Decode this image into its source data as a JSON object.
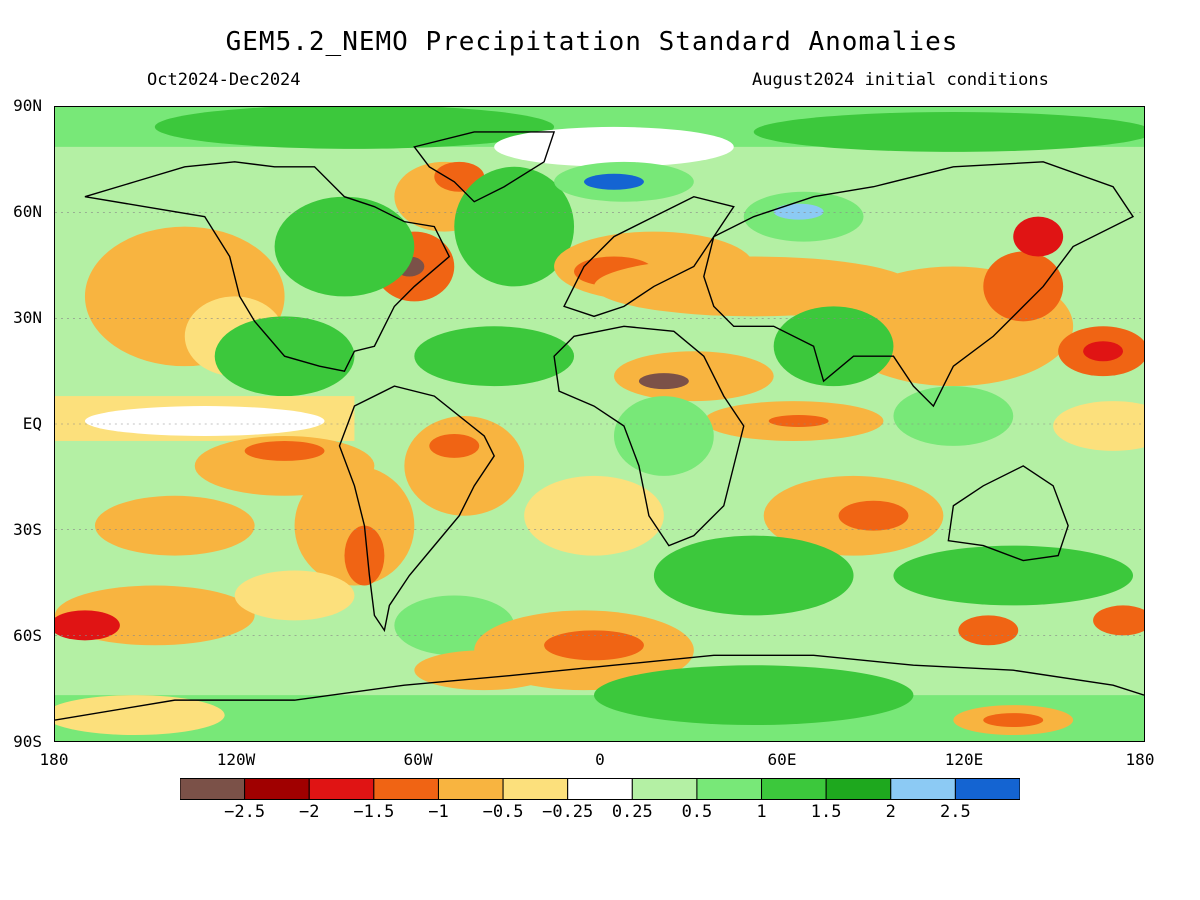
{
  "title": "GEM5.2_NEMO Precipitation Standard Anomalies",
  "period": "Oct2024-Dec2024",
  "initial_conditions": "August2024 initial conditions",
  "lat_labels": [
    "90N",
    "60N",
    "30N",
    "EQ",
    "30S",
    "60S",
    "90S"
  ],
  "lon_labels": [
    "180",
    "120W",
    "60W",
    "0",
    "60E",
    "120E",
    "180"
  ],
  "legend": {
    "colors": [
      "#7b5148",
      "#a00000",
      "#e01414",
      "#f06414",
      "#f8b440",
      "#fce07c",
      "#ffffff",
      "#b4f0a4",
      "#78e878",
      "#3cc83c",
      "#1ea81e",
      "#8ccaf4",
      "#1464d2"
    ],
    "labels": [
      "-2.5",
      "-2",
      "-1.5",
      "-1",
      "-0.5",
      "-0.25",
      "0.25",
      "0.5",
      "1",
      "1.5",
      "2",
      "2.5"
    ]
  }
}
